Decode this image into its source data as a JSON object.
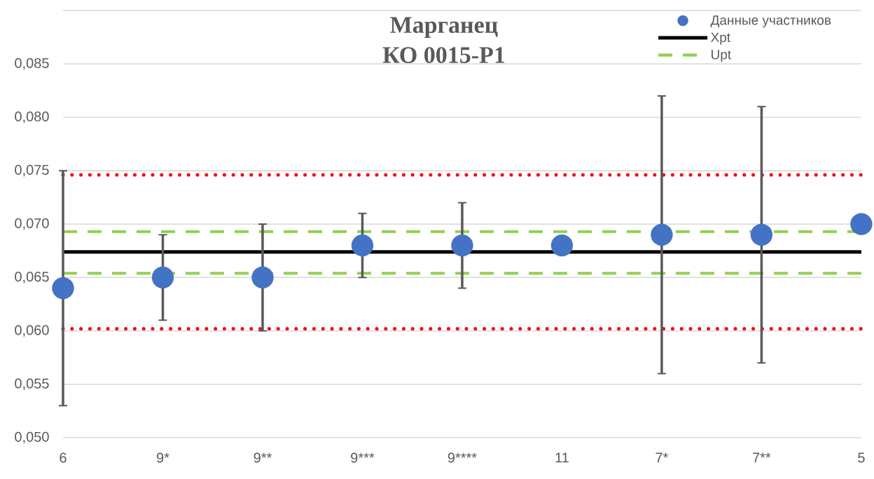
{
  "chart_data": {
    "type": "scatter",
    "title": "Марганец",
    "subtitle": "КО 0015-Р1",
    "categories": [
      "6",
      "9*",
      "9**",
      "9***",
      "9****",
      "11",
      "7*",
      "7**",
      "5"
    ],
    "ylim": [
      0.05,
      0.09
    ],
    "yticks": [
      {
        "value": 0.05,
        "label": "0,050"
      },
      {
        "value": 0.055,
        "label": "0,055"
      },
      {
        "value": 0.06,
        "label": "0,060"
      },
      {
        "value": 0.065,
        "label": "0,065"
      },
      {
        "value": 0.07,
        "label": "0,070"
      },
      {
        "value": 0.075,
        "label": "0,075"
      },
      {
        "value": 0.08,
        "label": "0,080"
      },
      {
        "value": 0.085,
        "label": "0,085"
      },
      {
        "value": 0.09,
        "label": null
      }
    ],
    "grid": "y",
    "legend": "top right",
    "series": [
      {
        "name": "Данные участников",
        "color": "#4472c4",
        "marker": "circle",
        "values": [
          0.064,
          0.065,
          0.065,
          0.068,
          0.068,
          0.068,
          0.069,
          0.069,
          0.07
        ],
        "errors": [
          0.011,
          0.004,
          0.005,
          0.003,
          0.004,
          null,
          0.013,
          0.012,
          null
        ]
      }
    ],
    "ref_lines": [
      {
        "axis": "y",
        "value": 0.0674,
        "label": "Xpt",
        "color": "#000000",
        "line_style": "solid"
      },
      {
        "axis": "y",
        "value": 0.0693,
        "label": "Upt",
        "color": "#92d050",
        "line_style": "dashed"
      },
      {
        "axis": "y",
        "value": 0.0654,
        "color": "#92d050",
        "line_style": "dashed"
      },
      {
        "axis": "y",
        "value": 0.0746,
        "color": "#ff0000",
        "line_style": "dotted"
      },
      {
        "axis": "y",
        "value": 0.0602,
        "color": "#ff0000",
        "line_style": "dotted"
      }
    ]
  }
}
